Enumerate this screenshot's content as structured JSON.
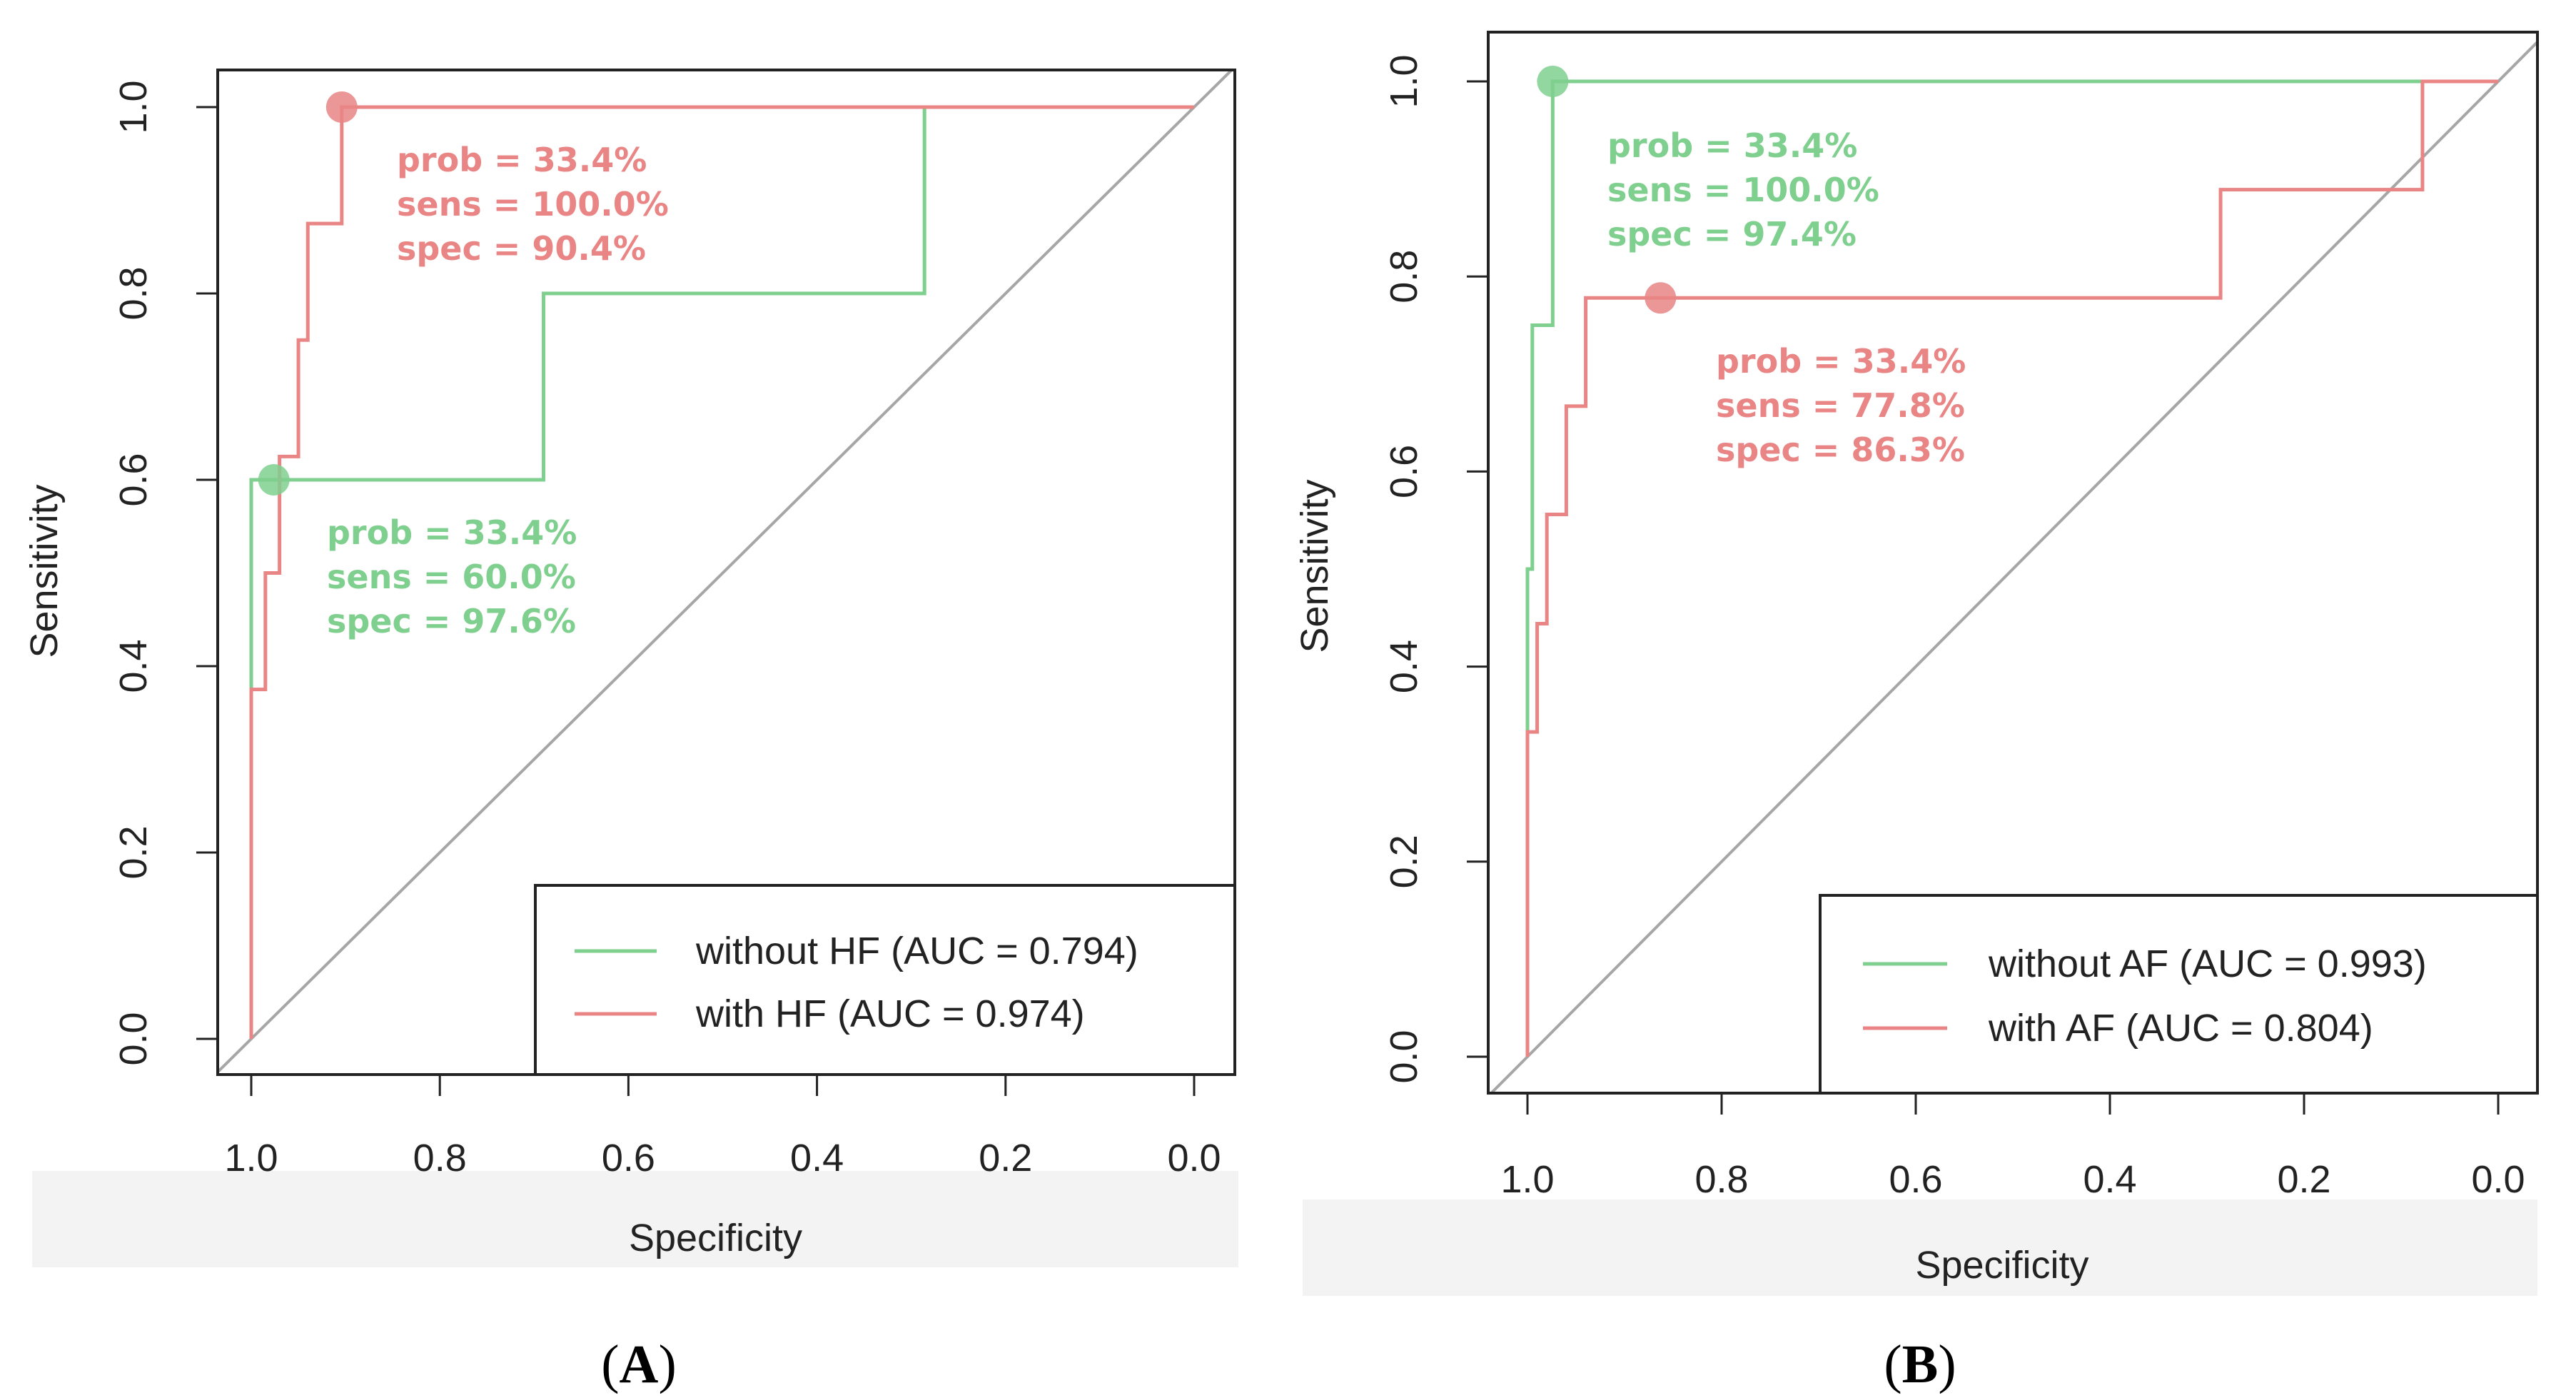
{
  "chart_data": [
    {
      "type": "line",
      "panel_label": "A",
      "xlabel": "Specificity",
      "ylabel": "Sensitivity",
      "xlim": [
        1.0,
        0.0
      ],
      "ylim": [
        0.0,
        1.0
      ],
      "x_ticks": [
        "1.0",
        "0.8",
        "0.6",
        "0.4",
        "0.2",
        "0.0"
      ],
      "y_ticks": [
        "0.0",
        "0.2",
        "0.4",
        "0.6",
        "0.8",
        "1.0"
      ],
      "legend_position": "bottom-right",
      "series": [
        {
          "name": "without HF (AUC = 0.794)",
          "color": "#7fcf8f",
          "specificity": [
            1.0,
            1.0,
            1.0,
            0.976,
            0.69,
            0.69,
            0.286,
            0.286,
            0.0
          ],
          "sensitivity": [
            0.0,
            0.38,
            0.6,
            0.6,
            0.6,
            0.8,
            0.8,
            1.0,
            1.0
          ],
          "marker": {
            "specificity": 0.976,
            "sensitivity": 0.6
          },
          "annotation": [
            "prob = 33.4%",
            "sens = 60.0%",
            "spec = 97.6%"
          ]
        },
        {
          "name": "with HF (AUC = 0.974)",
          "color": "#e98585",
          "specificity": [
            1.0,
            1.0,
            0.985,
            0.985,
            0.97,
            0.97,
            0.95,
            0.95,
            0.94,
            0.94,
            0.904,
            0.904,
            0.0
          ],
          "sensitivity": [
            0.0,
            0.375,
            0.375,
            0.5,
            0.5,
            0.625,
            0.625,
            0.75,
            0.75,
            0.875,
            0.875,
            1.0,
            1.0
          ],
          "marker": {
            "specificity": 0.904,
            "sensitivity": 1.0
          },
          "annotation": [
            "prob = 33.4%",
            "sens = 100.0%",
            "spec = 90.4%"
          ]
        }
      ]
    },
    {
      "type": "line",
      "panel_label": "B",
      "xlabel": "Specificity",
      "ylabel": "Sensitivity",
      "xlim": [
        1.0,
        0.0
      ],
      "ylim": [
        0.0,
        1.0
      ],
      "x_ticks": [
        "1.0",
        "0.8",
        "0.6",
        "0.4",
        "0.2",
        "0.0"
      ],
      "y_ticks": [
        "0.0",
        "0.2",
        "0.4",
        "0.6",
        "0.8",
        "1.0"
      ],
      "legend_position": "bottom-right",
      "series": [
        {
          "name": "without AF (AUC = 0.993)",
          "color": "#7fcf8f",
          "specificity": [
            1.0,
            1.0,
            0.995,
            0.995,
            0.974,
            0.974,
            0.0
          ],
          "sensitivity": [
            0.0,
            0.5,
            0.5,
            0.75,
            0.75,
            1.0,
            1.0
          ],
          "marker": {
            "specificity": 0.974,
            "sensitivity": 1.0
          },
          "annotation": [
            "prob = 33.4%",
            "sens = 100.0%",
            "spec = 97.4%"
          ]
        },
        {
          "name": "with AF (AUC = 0.804)",
          "color": "#e98585",
          "specificity": [
            1.0,
            1.0,
            0.99,
            0.99,
            0.98,
            0.98,
            0.96,
            0.96,
            0.94,
            0.94,
            0.286,
            0.286,
            0.078,
            0.078,
            0.0
          ],
          "sensitivity": [
            0.0,
            0.333,
            0.333,
            0.444,
            0.444,
            0.556,
            0.556,
            0.667,
            0.667,
            0.778,
            0.778,
            0.889,
            0.889,
            1.0,
            1.0
          ],
          "marker": {
            "specificity": 0.863,
            "sensitivity": 0.778
          },
          "annotation": [
            "prob = 33.4%",
            "sens = 77.8%",
            "spec = 86.3%"
          ]
        }
      ]
    }
  ],
  "colors": {
    "diagonal": "#a6a6a6",
    "axis": "#222222",
    "footer_shade": "#eeeeee"
  }
}
